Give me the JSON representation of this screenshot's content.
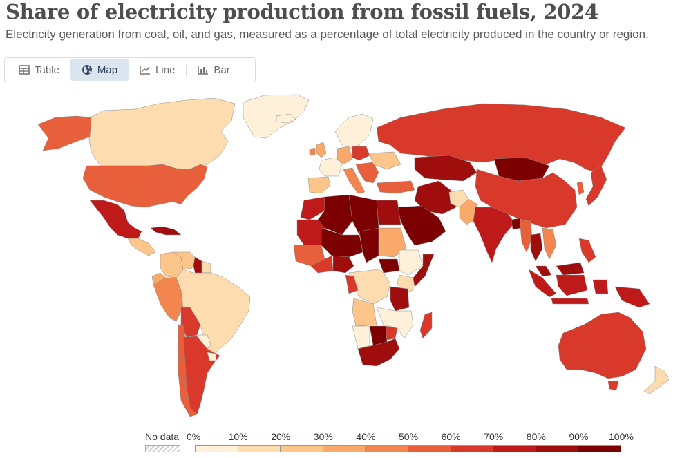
{
  "header": {
    "title": "Share of electricity production from fossil fuels, 2024",
    "subtitle": "Electricity generation from coal, oil, and gas, measured as a percentage of total electricity produced in the country or region."
  },
  "tabs": [
    {
      "label": "Table",
      "icon": "table-icon",
      "active": false
    },
    {
      "label": "Map",
      "icon": "globe-icon",
      "active": true
    },
    {
      "label": "Line",
      "icon": "line-chart-icon",
      "active": false
    },
    {
      "label": "Bar",
      "icon": "bar-chart-icon",
      "active": false
    }
  ],
  "legend": {
    "no_data_label": "No data",
    "bins": [
      {
        "label": "0%",
        "color": "#fef0d9"
      },
      {
        "label": "10%",
        "color": "#fddcb0"
      },
      {
        "label": "20%",
        "color": "#fcc68a"
      },
      {
        "label": "30%",
        "color": "#f9a96a"
      },
      {
        "label": "40%",
        "color": "#f3864f"
      },
      {
        "label": "50%",
        "color": "#e8603b"
      },
      {
        "label": "60%",
        "color": "#d8392a"
      },
      {
        "label": "70%",
        "color": "#bf1a1a"
      },
      {
        "label": "80%",
        "color": "#a00d0d"
      },
      {
        "label": "90%",
        "color": "#7d0000"
      }
    ],
    "end_label": "100%"
  },
  "chart_data": {
    "type": "choropleth",
    "unit": "%",
    "scale": [
      0,
      10,
      20,
      30,
      40,
      50,
      60,
      70,
      80,
      90,
      100
    ],
    "regions": [
      {
        "name": "Canada",
        "bin": 1
      },
      {
        "name": "Greenland",
        "bin": 0
      },
      {
        "name": "Alaska (United States)",
        "bin": 5
      },
      {
        "name": "United States",
        "bin": 5
      },
      {
        "name": "Mexico",
        "bin": 7
      },
      {
        "name": "Cuba",
        "bin": 8
      },
      {
        "name": "Central America",
        "bin": 2
      },
      {
        "name": "Colombia",
        "bin": 2
      },
      {
        "name": "Venezuela",
        "bin": 2
      },
      {
        "name": "Guyana",
        "bin": 8
      },
      {
        "name": "Suriname",
        "bin": 1
      },
      {
        "name": "Ecuador",
        "bin": 3
      },
      {
        "name": "Peru",
        "bin": 4
      },
      {
        "name": "Brazil",
        "bin": 1
      },
      {
        "name": "Bolivia",
        "bin": 6
      },
      {
        "name": "Paraguay",
        "bin": 0
      },
      {
        "name": "Chile",
        "bin": 5
      },
      {
        "name": "Argentina",
        "bin": 6
      },
      {
        "name": "Uruguay",
        "bin": 0
      },
      {
        "name": "Iceland",
        "bin": 0
      },
      {
        "name": "Norway",
        "bin": 0
      },
      {
        "name": "Sweden",
        "bin": 0
      },
      {
        "name": "Finland",
        "bin": 0
      },
      {
        "name": "United Kingdom",
        "bin": 3
      },
      {
        "name": "Ireland",
        "bin": 4
      },
      {
        "name": "France",
        "bin": 0
      },
      {
        "name": "Spain",
        "bin": 2
      },
      {
        "name": "Portugal",
        "bin": 2
      },
      {
        "name": "Germany",
        "bin": 3
      },
      {
        "name": "Poland",
        "bin": 6
      },
      {
        "name": "Italy",
        "bin": 4
      },
      {
        "name": "Balkans",
        "bin": 5
      },
      {
        "name": "Ukraine",
        "bin": 2
      },
      {
        "name": "Turkey",
        "bin": 5
      },
      {
        "name": "Russia",
        "bin": 6
      },
      {
        "name": "Kazakhstan",
        "bin": 8
      },
      {
        "name": "Mongolia",
        "bin": 9
      },
      {
        "name": "China",
        "bin": 6
      },
      {
        "name": "Korea",
        "bin": 5
      },
      {
        "name": "Japan",
        "bin": 6
      },
      {
        "name": "Iran",
        "bin": 8
      },
      {
        "name": "Saudi Arabia",
        "bin": 9
      },
      {
        "name": "Pakistan",
        "bin": 3
      },
      {
        "name": "Afghanistan",
        "bin": 1
      },
      {
        "name": "India",
        "bin": 7
      },
      {
        "name": "Bangladesh",
        "bin": 9
      },
      {
        "name": "Myanmar",
        "bin": 5
      },
      {
        "name": "Thailand",
        "bin": 8
      },
      {
        "name": "Vietnam",
        "bin": 4
      },
      {
        "name": "Malaysia",
        "bin": 8
      },
      {
        "name": "Indonesia",
        "bin": 7
      },
      {
        "name": "Philippines",
        "bin": 6
      },
      {
        "name": "Papua New Guinea",
        "bin": 7
      },
      {
        "name": "Australia",
        "bin": 6
      },
      {
        "name": "New Zealand",
        "bin": 1
      },
      {
        "name": "Morocco",
        "bin": 7
      },
      {
        "name": "Algeria",
        "bin": 9
      },
      {
        "name": "Libya",
        "bin": 9
      },
      {
        "name": "Egypt",
        "bin": 8
      },
      {
        "name": "Mali",
        "bin": 9
      },
      {
        "name": "Niger",
        "bin": 9
      },
      {
        "name": "Chad",
        "bin": 9
      },
      {
        "name": "Mauritania",
        "bin": 7
      },
      {
        "name": "Senegal",
        "bin": 7
      },
      {
        "name": "Guinea",
        "bin": 5
      },
      {
        "name": "Nigeria",
        "bin": 8
      },
      {
        "name": "Sudan",
        "bin": 3
      },
      {
        "name": "South Sudan",
        "bin": 9
      },
      {
        "name": "Ethiopia",
        "bin": 0
      },
      {
        "name": "Somalia",
        "bin": 8
      },
      {
        "name": "Kenya",
        "bin": 1
      },
      {
        "name": "Gabon",
        "bin": 6
      },
      {
        "name": "DR Congo",
        "bin": 0
      },
      {
        "name": "Tanzania",
        "bin": 8
      },
      {
        "name": "Angola",
        "bin": 2
      },
      {
        "name": "Zambia",
        "bin": 0
      },
      {
        "name": "Mozambique",
        "bin": 0
      },
      {
        "name": "Madagascar",
        "bin": 6
      },
      {
        "name": "Namibia",
        "bin": 0
      },
      {
        "name": "Botswana",
        "bin": 9
      },
      {
        "name": "Zimbabwe",
        "bin": 6
      },
      {
        "name": "South Africa",
        "bin": 8
      }
    ]
  }
}
